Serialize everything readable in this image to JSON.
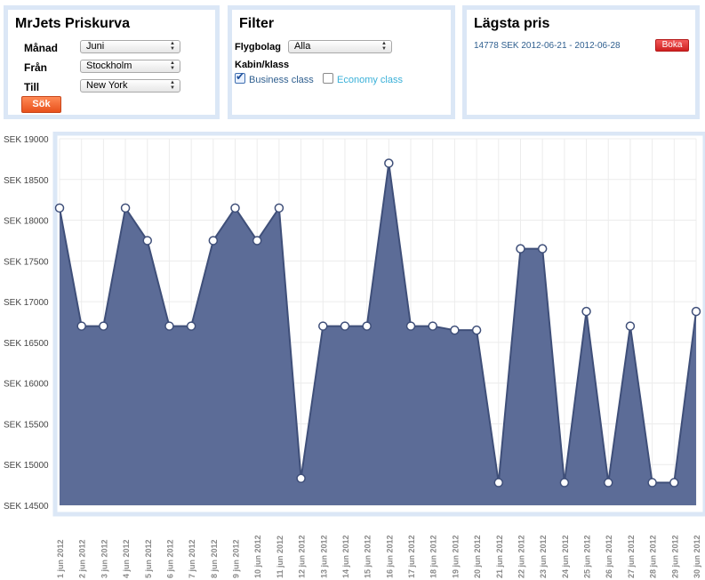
{
  "search": {
    "title": "MrJets Priskurva",
    "month_label": "Månad",
    "month_value": "Juni",
    "from_label": "Från",
    "from_value": "Stockholm",
    "to_label": "Till",
    "to_value": "New York",
    "search_button": "Sök"
  },
  "filter": {
    "title": "Filter",
    "airline_label": "Flygbolag",
    "airline_value": "Alla",
    "cabin_label": "Kabin/klass",
    "business_label": "Business class",
    "business_checked": true,
    "economy_label": "Economy class",
    "economy_checked": false
  },
  "lowest": {
    "title": "Lägsta pris",
    "price_text": "14778 SEK 2012-06-21 - 2012-06-28",
    "book_button": "Boka"
  },
  "colors": {
    "panel_border": "#dbe7f6",
    "area_fill": "#5c6c97",
    "area_line": "#3f4f79",
    "grid": "#ececec",
    "search_button": "#e8511c",
    "book_button": "#cf2020",
    "link_text": "#2f5f8f",
    "economy_text": "#3ab0d8"
  },
  "chart_data": {
    "type": "area",
    "title": "",
    "xlabel": "",
    "ylabel": "",
    "ylim": [
      14500,
      19000
    ],
    "y_ticks": [
      14500,
      15000,
      15500,
      16000,
      16500,
      17000,
      17500,
      18000,
      18500,
      19000
    ],
    "y_tick_prefix": "SEK ",
    "categories": [
      "1 jun 2012",
      "2 jun 2012",
      "3 jun 2012",
      "4 jun 2012",
      "5 jun 2012",
      "6 jun 2012",
      "7 jun 2012",
      "8 jun 2012",
      "9 jun 2012",
      "10 jun 2012",
      "11 jun 2012",
      "12 jun 2012",
      "13 jun 2012",
      "14 jun 2012",
      "15 jun 2012",
      "16 jun 2012",
      "17 jun 2012",
      "18 jun 2012",
      "19 jun 2012",
      "20 jun 2012",
      "21 jun 2012",
      "22 jun 2012",
      "23 jun 2012",
      "24 jun 2012",
      "25 jun 2012",
      "26 jun 2012",
      "27 jun 2012",
      "28 jun 2012",
      "29 jun 2012",
      "30 jun 2012"
    ],
    "values": [
      18150,
      16700,
      16700,
      18150,
      17750,
      16700,
      16700,
      17750,
      18150,
      17750,
      18150,
      14830,
      16700,
      16700,
      16700,
      18700,
      16700,
      16700,
      16650,
      16650,
      14778,
      17650,
      17650,
      14778,
      16880,
      14778,
      16700,
      14778,
      14778,
      16880
    ],
    "grid": true,
    "legend": "none"
  }
}
